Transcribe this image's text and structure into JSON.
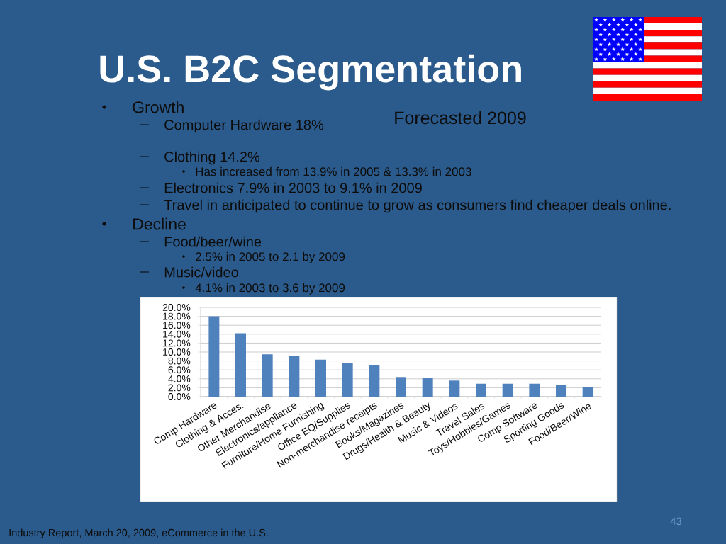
{
  "chart_data": {
    "type": "bar",
    "title": "U.S. B2C Segmentation",
    "subtitle": "Forecasted 2009",
    "categories": [
      "Comp Hardware",
      "Clothing & Acces.",
      "Other Merchandise",
      "Electronics/appliance",
      "Furniture/Home Furnishing",
      "Office EQ/Supplies",
      "Non-merchandise receipts",
      "Books/Magazines",
      "Drugs/Health & Beauty",
      "Music & Videos",
      "Travel Sales",
      "Toys/Hobbies/Games",
      "Comp Software",
      "Sporting Goods",
      "Food/Beer/Wine"
    ],
    "values": [
      18.0,
      14.2,
      9.5,
      9.1,
      8.3,
      7.5,
      7.1,
      4.4,
      4.2,
      3.6,
      2.9,
      2.9,
      2.9,
      2.6,
      2.1
    ],
    "color": "#4f81bd",
    "ylim": [
      0,
      20
    ],
    "yticks": [
      {
        "value": 0,
        "label": "0.0%"
      },
      {
        "value": 2,
        "label": "2.0%"
      },
      {
        "value": 4,
        "label": "4.0%"
      },
      {
        "value": 6,
        "label": "6.0%"
      },
      {
        "value": 8,
        "label": "8.0%"
      },
      {
        "value": 10,
        "label": "10.0%"
      },
      {
        "value": 12,
        "label": "12.0%"
      },
      {
        "value": 14,
        "label": "14.0%"
      },
      {
        "value": 16,
        "label": "16.0%"
      },
      {
        "value": 18,
        "label": "18.0%"
      },
      {
        "value": 20,
        "label": "20.0%"
      }
    ],
    "grid": "y",
    "annotations": [
      "Growth",
      "Computer Hardware 18%",
      "Clothing 14.2%",
      "Has increased from 13.9% in 2005 & 13.3% in 2003",
      "Electronics 7.9% in 2003 to 9.1% in 2009",
      "Travel in anticipated to continue to grow as consumers find cheaper deals online.",
      "Decline",
      "Food/beer/wine",
      "2.5% in 2005 to 2.1 by 2009",
      "Music/video",
      "4.1% in 2003 to 3.6 by 2009",
      "Industry Report, March 20, 2009, eCommerce in the U.S.",
      "43"
    ]
  }
}
